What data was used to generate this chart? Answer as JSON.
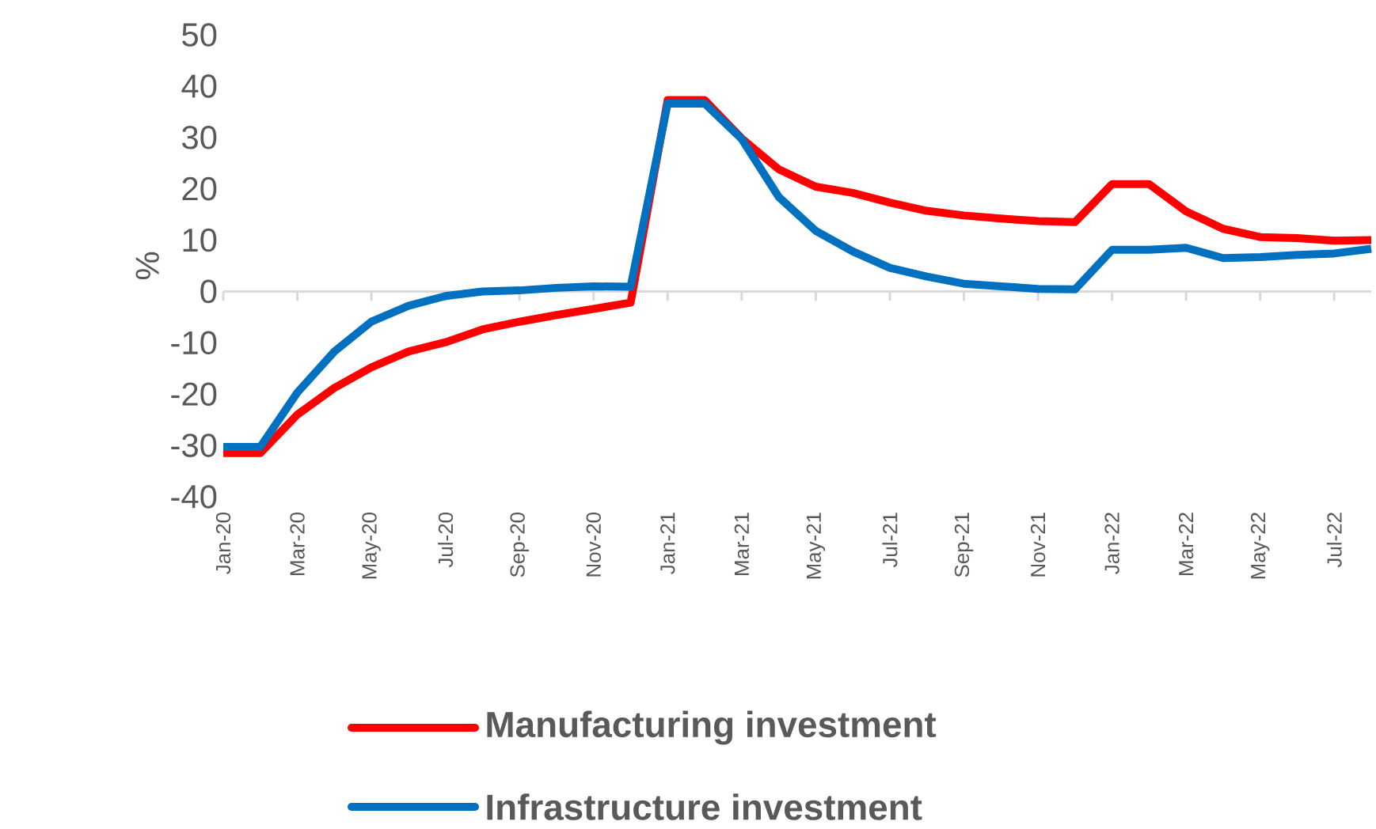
{
  "chart_data": {
    "type": "line",
    "ylabel": "%",
    "categories": [
      "Jan-20",
      null,
      "Mar-20",
      null,
      "May-20",
      null,
      "Jul-20",
      null,
      "Sep-20",
      null,
      "Nov-20",
      null,
      "Jan-21",
      null,
      "Mar-21",
      null,
      "May-21",
      null,
      "Jul-21",
      null,
      "Sep-21",
      null,
      "Nov-21",
      null,
      "Jan-22",
      null,
      "Mar-22",
      null,
      "May-22",
      null,
      "Jul-22",
      null
    ],
    "series": [
      {
        "name": "Manufacturing investment",
        "color": "#ff0000",
        "values": [
          -31.5,
          -31.5,
          -24,
          -18.8,
          -14.8,
          -11.7,
          -9.9,
          -7.4,
          -5.9,
          -4.6,
          -3.4,
          -2.2,
          37.3,
          37.3,
          29.8,
          23.8,
          20.4,
          19.2,
          17.3,
          15.7,
          14.8,
          14.2,
          13.7,
          13.5,
          20.9,
          20.9,
          15.6,
          12.2,
          10.6,
          10.4,
          9.9,
          10.0
        ]
      },
      {
        "name": "Infrastructure investment",
        "color": "#0070c0",
        "values": [
          -30.3,
          -30.3,
          -19.7,
          -11.7,
          -5.9,
          -2.8,
          -0.9,
          0,
          0.2,
          0.7,
          1.0,
          0.9,
          36.6,
          36.6,
          29.7,
          18.4,
          11.8,
          7.8,
          4.6,
          2.9,
          1.5,
          1.0,
          0.5,
          0.4,
          8.1,
          8.1,
          8.5,
          6.5,
          6.7,
          7.1,
          7.4,
          8.3
        ]
      }
    ],
    "ylim": [
      -40,
      50
    ],
    "yticks": [
      -40,
      -30,
      -20,
      -10,
      0,
      10,
      20,
      30,
      40,
      50
    ],
    "legend": "bottom",
    "marker": "none",
    "line_style": "solid"
  }
}
